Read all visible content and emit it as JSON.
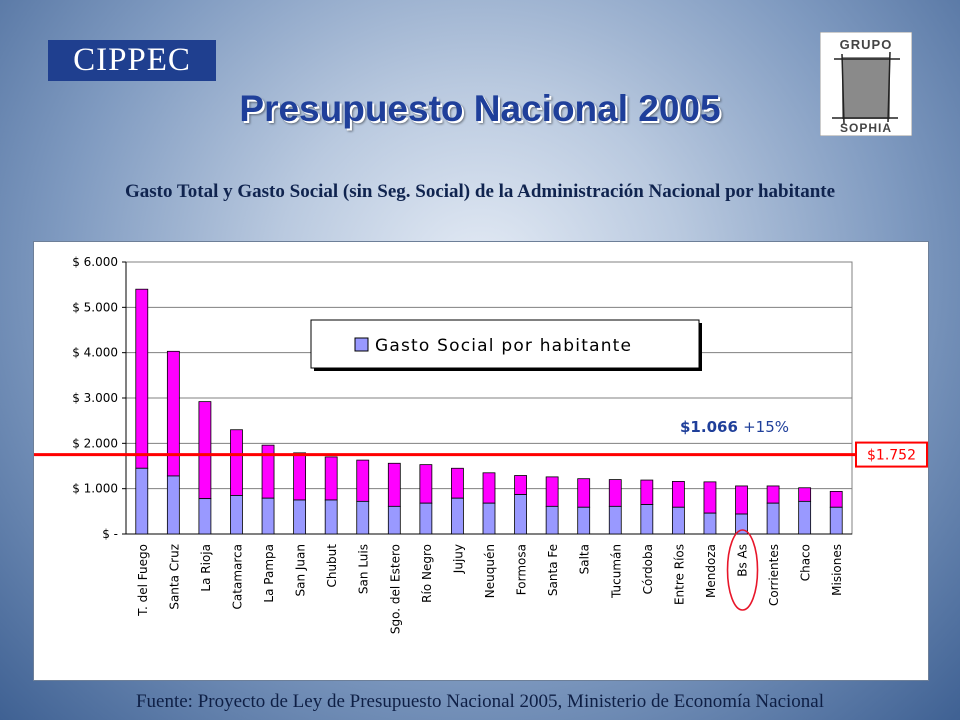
{
  "logos": {
    "cippec": "CIPPEC",
    "sophia_top": "GRUPO",
    "sophia_bottom": "SOPHIA"
  },
  "title": "Presupuesto Nacional 2005",
  "subtitle": "Gasto Total y Gasto Social (sin Seg. Social) de la Administración Nacional por habitante",
  "source": "Fuente: Proyecto de Ley de Presupuesto Nacional 2005, Ministerio de Economía Nacional",
  "colors": {
    "social": "#9999ff",
    "total": "#ff00ff",
    "reference_line": "#ff0000",
    "highlight_circle": "#e8162a",
    "annotation_text": "#1f3f9a",
    "title": "#1f3f9a"
  },
  "chart_data": {
    "type": "bar",
    "stacked": true,
    "categories": [
      "T. del Fuego",
      "Santa Cruz",
      "La Rioja",
      "Catamarca",
      "La Pampa",
      "San Juan",
      "Chubut",
      "San Luis",
      "Sgo. del Estero",
      "Río Negro",
      "Jujuy",
      "Neuquén",
      "Formosa",
      "Santa Fe",
      "Salta",
      "Tucumán",
      "Córdoba",
      "Entre Ríos",
      "Mendoza",
      "Bs As",
      "Corrientes",
      "Chaco",
      "Misiones"
    ],
    "series": [
      {
        "name": "Gasto Social por habitante",
        "color": "#9999ff",
        "values": [
          1450,
          1280,
          780,
          850,
          790,
          750,
          750,
          720,
          610,
          680,
          790,
          680,
          870,
          610,
          590,
          610,
          650,
          590,
          460,
          440,
          680,
          720,
          590
        ]
      },
      {
        "color": "#ff00ff",
        "total_values": [
          5400,
          4030,
          2920,
          2300,
          1960,
          1790,
          1700,
          1630,
          1560,
          1530,
          1450,
          1350,
          1290,
          1260,
          1220,
          1200,
          1190,
          1160,
          1150,
          1060,
          1060,
          1020,
          940
        ]
      }
    ],
    "y_ticks": [
      "$ 6.000",
      "$ 5.000",
      "$ 4.000",
      "$ 3.000",
      "$ 2.000",
      "$ 1.000",
      "$ -"
    ],
    "ylim": [
      0,
      6000
    ],
    "grid": true,
    "legend": {
      "label": "Gasto Social por habitante",
      "position": "top-center"
    },
    "reference_line": {
      "value": 1752,
      "label": "$1.752"
    },
    "annotation": {
      "value_text": "$1.066",
      "pct_text": "+15%"
    },
    "highlight_category": "Bs As"
  }
}
